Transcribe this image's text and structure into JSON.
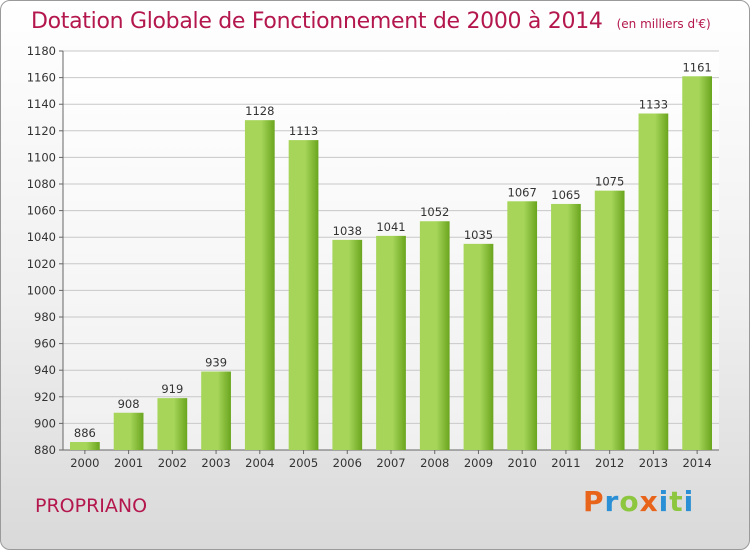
{
  "header": {
    "title": "Dotation Globale de Fonctionnement de 2000 à 2014",
    "unit": "(en milliers d'€)"
  },
  "footer": {
    "city": "PROPRIANO",
    "logo": "Proxiti",
    "logo_letters": [
      {
        "ch": "P",
        "color": "#e8641a"
      },
      {
        "ch": "r",
        "color": "#2a8fd4"
      },
      {
        "ch": "o",
        "color": "#8dc63f"
      },
      {
        "ch": "x",
        "color": "#e8641a"
      },
      {
        "ch": "i",
        "color": "#2a8fd4"
      },
      {
        "ch": "t",
        "color": "#8dc63f"
      },
      {
        "ch": "i",
        "color": "#2a8fd4"
      }
    ]
  },
  "colors": {
    "title": "#b4174d",
    "bar_light": "#a6d55a",
    "bar_dark": "#6aa51e",
    "grid": "#c8c8c8",
    "axis_text": "#333333"
  },
  "chart_data": {
    "type": "bar",
    "categories": [
      "2000",
      "2001",
      "2002",
      "2003",
      "2004",
      "2005",
      "2006",
      "2007",
      "2008",
      "2009",
      "2010",
      "2011",
      "2012",
      "2013",
      "2014"
    ],
    "values": [
      886,
      908,
      919,
      939,
      1128,
      1113,
      1038,
      1041,
      1052,
      1035,
      1067,
      1065,
      1075,
      1133,
      1161
    ],
    "title": "Dotation Globale de Fonctionnement de 2000 à 2014",
    "subtitle": "(en milliers d'€)",
    "ylim": [
      880,
      1180
    ],
    "yticks": [
      880,
      900,
      920,
      940,
      960,
      980,
      1000,
      1020,
      1040,
      1060,
      1080,
      1100,
      1120,
      1140,
      1160,
      1180
    ],
    "grid": true,
    "legend": "none"
  }
}
